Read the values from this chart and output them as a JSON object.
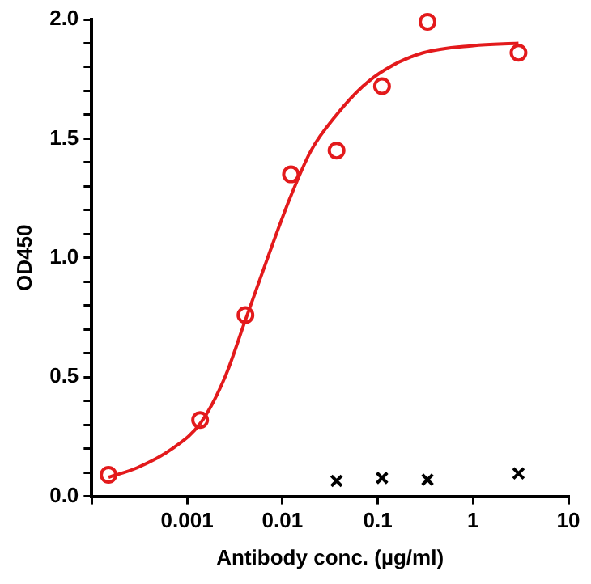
{
  "chart_data": {
    "type": "scatter",
    "xlabel": "Antibody conc. (µg/ml)",
    "ylabel": "OD450",
    "log": "x",
    "grid": false,
    "legend": false,
    "xlim": [
      0.0001,
      10
    ],
    "xticks": [
      {
        "value": 0.0001,
        "label": null
      },
      0.001,
      0.01,
      0.1,
      1,
      10
    ],
    "ylim": [
      0,
      2.0
    ],
    "yticks": [
      {
        "value": 0,
        "label": "0.0"
      },
      {
        "value": 0.1,
        "label": null
      },
      {
        "value": 0.2,
        "label": null
      },
      {
        "value": 0.3,
        "label": null
      },
      {
        "value": 0.4,
        "label": null
      },
      {
        "value": 0.5,
        "label": "0.5"
      },
      {
        "value": 0.6,
        "label": null
      },
      {
        "value": 0.7,
        "label": null
      },
      {
        "value": 0.8,
        "label": null
      },
      {
        "value": 0.9,
        "label": null
      },
      {
        "value": 1,
        "label": "1.0"
      },
      {
        "value": 1.1,
        "label": null
      },
      {
        "value": 1.2,
        "label": null
      },
      {
        "value": 1.3,
        "label": null
      },
      {
        "value": 1.4,
        "label": null
      },
      {
        "value": 1.5,
        "label": "1.5"
      },
      {
        "value": 1.6,
        "label": null
      },
      {
        "value": 1.7,
        "label": null
      },
      {
        "value": 1.8,
        "label": null
      },
      {
        "value": 1.9,
        "label": null
      },
      {
        "value": 2,
        "label": "2.0"
      }
    ],
    "series": [
      {
        "type": "line",
        "color": "#e31a1c",
        "marker": "none",
        "line_style": "solid",
        "x": [
          0.00015,
          0.0003,
          0.0007,
          0.0014,
          0.0025,
          0.0041,
          0.007,
          0.012,
          0.02,
          0.037,
          0.07,
          0.12,
          0.3,
          1,
          3
        ],
        "values": [
          0.08,
          0.12,
          0.2,
          0.31,
          0.5,
          0.74,
          1.0,
          1.25,
          1.45,
          1.6,
          1.72,
          1.79,
          1.86,
          1.89,
          1.9
        ]
      },
      {
        "color": "#e31a1c",
        "marker": "circle",
        "x": [
          0.00015,
          0.00137,
          0.0041,
          0.0123,
          0.037,
          0.111,
          0.333,
          3
        ],
        "values": [
          0.09,
          0.32,
          0.76,
          1.35,
          1.45,
          1.72,
          1.99,
          1.86
        ]
      },
      {
        "color": "#000000",
        "marker": "cross",
        "x": [
          0.037,
          0.111,
          0.333,
          3
        ],
        "values": [
          0.065,
          0.077,
          0.07,
          0.096
        ]
      }
    ]
  }
}
